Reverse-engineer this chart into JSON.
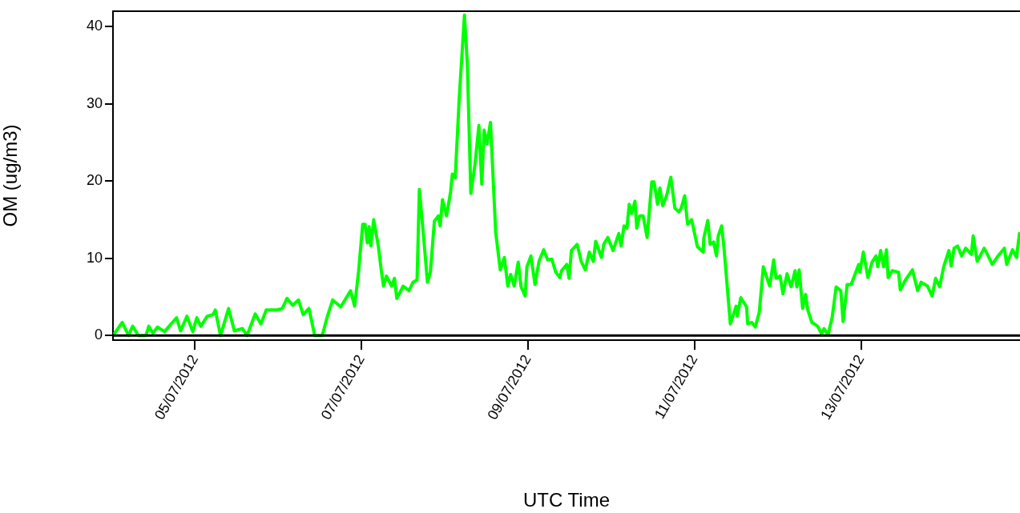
{
  "chart_data": {
    "type": "line",
    "xlabel": "UTC Time",
    "ylabel": "OM (ug/m3)",
    "color": "#00ff00",
    "line_style": "solid",
    "marker": "none",
    "xlim": [
      "2012-07-04T00:20",
      "2012-07-14T21:50"
    ],
    "xticks": [
      {
        "value": "2012-07-05",
        "label": "05/07/2012"
      },
      {
        "value": "2012-07-07",
        "label": "07/07/2012"
      },
      {
        "value": "2012-07-09",
        "label": "09/07/2012"
      },
      {
        "value": "2012-07-11",
        "label": "11/07/2012"
      },
      {
        "value": "2012-07-13",
        "label": "13/07/2012"
      }
    ],
    "ylim": [
      -0.6,
      42
    ],
    "yticks": [
      0,
      10,
      20,
      30,
      40
    ],
    "ref_lines": [
      {
        "axis": "y",
        "value": 0,
        "color": "#000000"
      }
    ],
    "x": [
      "2012-07-04T00:50",
      "2012-07-04T03:00",
      "2012-07-04T04:50",
      "2012-07-04T06:00",
      "2012-07-04T07:40",
      "2012-07-04T09:50",
      "2012-07-04T10:40",
      "2012-07-04T11:50",
      "2012-07-04T13:10",
      "2012-07-04T15:10",
      "2012-07-04T18:40",
      "2012-07-04T19:50",
      "2012-07-04T21:40",
      "2012-07-04T23:20",
      "2012-07-05T00:30",
      "2012-07-05T01:40",
      "2012-07-05T03:30",
      "2012-07-05T05:10",
      "2012-07-05T05:50",
      "2012-07-05T07:20",
      "2012-07-05T09:40",
      "2012-07-05T11:20",
      "2012-07-05T13:40",
      "2012-07-05T15:00",
      "2012-07-05T17:20",
      "2012-07-05T19:00",
      "2012-07-05T20:30",
      "2012-07-05T23:30",
      "2012-07-06T01:10",
      "2012-07-06T02:30",
      "2012-07-06T04:10",
      "2012-07-06T05:50",
      "2012-07-06T07:10",
      "2012-07-06T08:50",
      "2012-07-06T10:30",
      "2012-07-06T12:40",
      "2012-07-06T14:10",
      "2012-07-06T15:40",
      "2012-07-06T18:00",
      "2012-07-06T20:50",
      "2012-07-06T22:00",
      "2012-07-06T23:10",
      "2012-07-07T00:20",
      "2012-07-07T01:00",
      "2012-07-07T01:40",
      "2012-07-07T02:10",
      "2012-07-07T02:40",
      "2012-07-07T03:30",
      "2012-07-07T04:50",
      "2012-07-07T05:40",
      "2012-07-07T06:20",
      "2012-07-07T07:10",
      "2012-07-07T08:40",
      "2012-07-07T09:30",
      "2012-07-07T10:10",
      "2012-07-07T11:20",
      "2012-07-07T12:00",
      "2012-07-07T13:40",
      "2012-07-07T14:50",
      "2012-07-07T16:00",
      "2012-07-07T16:40",
      "2012-07-07T17:50",
      "2012-07-07T19:00",
      "2012-07-07T19:50",
      "2012-07-07T21:00",
      "2012-07-07T22:10",
      "2012-07-07T22:40",
      "2012-07-07T23:20",
      "2012-07-08T00:30",
      "2012-07-08T01:40",
      "2012-07-08T02:10",
      "2012-07-08T03:00",
      "2012-07-08T04:10",
      "2012-07-08T05:40",
      "2012-07-08T06:30",
      "2012-07-08T07:30",
      "2012-07-08T08:40",
      "2012-07-08T09:50",
      "2012-07-08T10:40",
      "2012-07-08T11:20",
      "2012-07-08T12:10",
      "2012-07-08T13:10",
      "2012-07-08T14:40",
      "2012-07-08T16:00",
      "2012-07-08T17:10",
      "2012-07-08T18:10",
      "2012-07-08T19:00",
      "2012-07-08T20:00",
      "2012-07-08T21:10",
      "2012-07-08T22:00",
      "2012-07-08T23:10",
      "2012-07-08T23:40",
      "2012-07-09T00:50",
      "2012-07-09T02:00",
      "2012-07-09T03:10",
      "2012-07-09T04:30",
      "2012-07-09T05:40",
      "2012-07-09T06:50",
      "2012-07-09T08:00",
      "2012-07-09T09:10",
      "2012-07-09T09:40",
      "2012-07-09T11:10",
      "2012-07-09T11:50",
      "2012-07-09T12:30",
      "2012-07-09T14:10",
      "2012-07-09T15:20",
      "2012-07-09T16:30",
      "2012-07-09T17:40",
      "2012-07-09T18:50",
      "2012-07-09T19:30",
      "2012-07-09T21:10",
      "2012-07-09T21:50",
      "2012-07-09T23:00",
      "2012-07-10T00:30",
      "2012-07-10T02:10",
      "2012-07-10T02:50",
      "2012-07-10T03:40",
      "2012-07-10T04:30",
      "2012-07-10T05:10",
      "2012-07-10T05:50",
      "2012-07-10T06:50",
      "2012-07-10T07:20",
      "2012-07-10T08:10",
      "2012-07-10T09:10",
      "2012-07-10T10:20",
      "2012-07-10T11:40",
      "2012-07-10T12:20",
      "2012-07-10T13:20",
      "2012-07-10T14:00",
      "2012-07-10T14:50",
      "2012-07-10T16:00",
      "2012-07-10T17:10",
      "2012-07-10T18:20",
      "2012-07-10T19:30",
      "2012-07-10T20:10",
      "2012-07-10T21:10",
      "2012-07-10T22:00",
      "2012-07-10T23:10",
      "2012-07-11T00:50",
      "2012-07-11T02:30",
      "2012-07-11T02:40",
      "2012-07-11T03:50",
      "2012-07-11T04:30",
      "2012-07-11T05:30",
      "2012-07-11T06:20",
      "2012-07-11T06:50",
      "2012-07-11T07:50",
      "2012-07-11T08:30",
      "2012-07-11T10:20",
      "2012-07-11T12:00",
      "2012-07-11T12:20",
      "2012-07-11T13:20",
      "2012-07-11T15:00",
      "2012-07-11T15:20",
      "2012-07-11T16:30",
      "2012-07-11T17:30",
      "2012-07-11T18:40",
      "2012-07-11T19:50",
      "2012-07-11T20:30",
      "2012-07-11T21:40",
      "2012-07-11T22:50",
      "2012-07-11T23:30",
      "2012-07-12T00:40",
      "2012-07-12T01:30",
      "2012-07-12T02:40",
      "2012-07-12T03:50",
      "2012-07-12T05:00",
      "2012-07-12T05:30",
      "2012-07-12T06:10",
      "2012-07-12T07:10",
      "2012-07-12T08:00",
      "2012-07-12T08:40",
      "2012-07-12T09:50",
      "2012-07-12T11:30",
      "2012-07-12T12:40",
      "2012-07-12T13:20",
      "2012-07-12T14:30",
      "2012-07-12T15:40",
      "2012-07-12T16:50",
      "2012-07-12T18:10",
      "2012-07-12T18:50",
      "2012-07-12T20:00",
      "2012-07-12T21:10",
      "2012-07-12T22:20",
      "2012-07-12T23:20",
      "2012-07-12T23:40",
      "2012-07-13T00:40",
      "2012-07-13T02:00",
      "2012-07-13T03:10",
      "2012-07-13T04:20",
      "2012-07-13T04:50",
      "2012-07-13T05:40",
      "2012-07-13T06:30",
      "2012-07-13T07:20",
      "2012-07-13T07:50",
      "2012-07-13T09:00",
      "2012-07-13T10:50",
      "2012-07-13T11:20",
      "2012-07-13T12:50",
      "2012-07-13T14:50",
      "2012-07-13T16:20",
      "2012-07-13T17:20",
      "2012-07-13T19:10",
      "2012-07-13T20:30",
      "2012-07-13T21:30",
      "2012-07-13T22:40",
      "2012-07-13T23:50",
      "2012-07-14T01:20",
      "2012-07-14T02:00",
      "2012-07-14T02:50",
      "2012-07-14T03:50",
      "2012-07-14T05:00",
      "2012-07-14T06:10",
      "2012-07-14T07:50",
      "2012-07-14T08:20",
      "2012-07-14T09:30",
      "2012-07-14T11:30",
      "2012-07-14T12:40",
      "2012-07-14T13:50",
      "2012-07-14T15:30",
      "2012-07-14T17:20",
      "2012-07-14T18:00",
      "2012-07-14T19:40",
      "2012-07-14T20:50",
      "2012-07-14T21:40"
    ],
    "values": [
      0.3,
      1.7,
      0,
      1.2,
      0,
      0,
      1.2,
      0.3,
      1.1,
      0.5,
      2.3,
      0.6,
      2.5,
      0.5,
      2.3,
      1.2,
      2.5,
      2.7,
      3.3,
      0,
      3.5,
      0.6,
      0.9,
      0,
      2.8,
      1.5,
      3.3,
      3.3,
      3.5,
      4.8,
      3.9,
      4.6,
      2.7,
      3.5,
      0,
      0,
      2.5,
      4.6,
      3.7,
      5.8,
      3.8,
      8.4,
      14.4,
      14.4,
      12.0,
      14.1,
      11.6,
      15.0,
      11.6,
      8.5,
      6.4,
      7.7,
      6.4,
      7.4,
      4.8,
      5.8,
      6.4,
      5.8,
      6.9,
      7.2,
      18.9,
      13.1,
      6.9,
      8.2,
      14.8,
      15.5,
      14.2,
      17.6,
      15.5,
      18.6,
      20.9,
      20.4,
      30.8,
      41.5,
      35.2,
      18.4,
      22.0,
      27.2,
      19.6,
      26.6,
      24.8,
      27.6,
      13.4,
      8.5,
      10.1,
      6.4,
      7.9,
      6.4,
      9.5,
      6.3,
      5.1,
      8.9,
      10.3,
      6.6,
      9.6,
      11.1,
      9.8,
      9.9,
      8.2,
      7.5,
      8.4,
      9.2,
      7.4,
      11.0,
      11.8,
      9.6,
      8.5,
      10.8,
      9.6,
      12.2,
      10.1,
      11.8,
      12.7,
      11.0,
      13.2,
      11.6,
      14.2,
      13.9,
      17.0,
      15.8,
      17.4,
      13.9,
      15.5,
      15.5,
      12.7,
      19.9,
      19.9,
      17.0,
      19.1,
      16.8,
      18.2,
      20.5,
      16.5,
      16.0,
      16.5,
      18.1,
      14.4,
      15.0,
      11.5,
      10.8,
      12.6,
      14.9,
      11.8,
      12.1,
      10.3,
      12.9,
      14.2,
      11.3,
      1.5,
      3.8,
      2.5,
      4.9,
      3.7,
      1.5,
      1.7,
      1.1,
      3.0,
      8.9,
      8.0,
      6.4,
      9.8,
      7.4,
      7.7,
      5.4,
      8.0,
      6.3,
      8.4,
      6.3,
      8.5,
      3.5,
      5.3,
      3.3,
      1.7,
      1.2,
      0.2,
      0.9,
      0.1,
      2.3,
      6.3,
      5.8,
      1.8,
      6.6,
      6.6,
      8.0,
      9.2,
      8.2,
      10.8,
      7.5,
      9.5,
      10.3,
      8.9,
      11.0,
      8.9,
      11.1,
      7.5,
      8.4,
      8.2,
      5.9,
      7.2,
      8.5,
      5.8,
      6.9,
      6.4,
      5.1,
      7.4,
      6.3,
      8.9,
      11.0,
      9.0,
      11.3,
      11.6,
      10.3,
      11.3,
      10.5,
      12.9,
      9.6,
      11.3,
      10.3,
      9.2,
      10.3,
      11.3,
      9.2,
      11.1,
      10.1,
      13.2
    ]
  }
}
